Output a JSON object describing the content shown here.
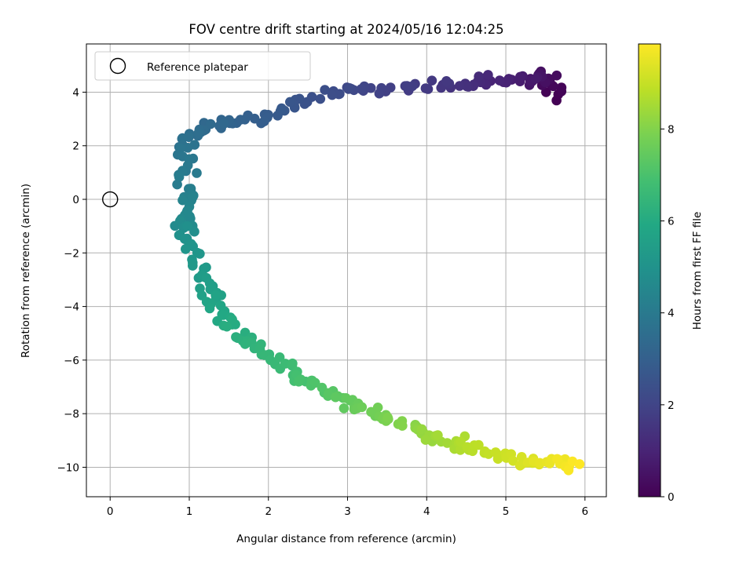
{
  "chart_data": {
    "type": "scatter",
    "title": "FOV centre drift starting at 2024/05/16 12:04:25",
    "xlabel": "Angular distance from reference (arcmin)",
    "ylabel": "Rotation from reference (arcmin)",
    "xlim": [
      -0.3,
      6.27
    ],
    "ylim": [
      -11.1,
      5.8
    ],
    "xticks": [
      0,
      1,
      2,
      3,
      4,
      5,
      6
    ],
    "yticks": [
      -10,
      -8,
      -6,
      -4,
      -2,
      0,
      2,
      4
    ],
    "xtick_labels": [
      "0",
      "1",
      "2",
      "3",
      "4",
      "5",
      "6"
    ],
    "ytick_labels": [
      "−10",
      "−8",
      "−6",
      "−4",
      "−2",
      "0",
      "2",
      "4"
    ],
    "grid": true,
    "legend": {
      "position": "top-left",
      "label": "Reference platepar",
      "marker": "open-circle"
    },
    "reference_point": {
      "x": 0,
      "y": 0
    },
    "colorbar": {
      "label": "Hours from first FF file",
      "colormap": "viridis",
      "range": [
        0,
        9.85
      ],
      "ticks": [
        0,
        2,
        4,
        6,
        8
      ],
      "tick_labels": [
        "0",
        "2",
        "4",
        "6",
        "8"
      ]
    },
    "anchors": [
      {
        "h": 0.0,
        "x": 5.65,
        "y": 3.8
      },
      {
        "h": 0.3,
        "x": 5.55,
        "y": 4.6
      },
      {
        "h": 0.7,
        "x": 5.3,
        "y": 4.45
      },
      {
        "h": 1.0,
        "x": 4.9,
        "y": 4.5
      },
      {
        "h": 1.4,
        "x": 4.4,
        "y": 4.3
      },
      {
        "h": 1.7,
        "x": 3.95,
        "y": 4.3
      },
      {
        "h": 2.0,
        "x": 3.2,
        "y": 4.1
      },
      {
        "h": 2.3,
        "x": 2.8,
        "y": 4.0
      },
      {
        "h": 2.6,
        "x": 2.3,
        "y": 3.6
      },
      {
        "h": 2.9,
        "x": 1.9,
        "y": 3.0
      },
      {
        "h": 3.2,
        "x": 1.45,
        "y": 2.9
      },
      {
        "h": 3.5,
        "x": 1.1,
        "y": 2.5
      },
      {
        "h": 3.8,
        "x": 0.9,
        "y": 1.8
      },
      {
        "h": 4.2,
        "x": 0.95,
        "y": 0.4
      },
      {
        "h": 4.6,
        "x": 0.95,
        "y": -0.8
      },
      {
        "h": 5.0,
        "x": 1.0,
        "y": -1.5
      },
      {
        "h": 5.3,
        "x": 1.15,
        "y": -2.7
      },
      {
        "h": 5.7,
        "x": 1.3,
        "y": -3.8
      },
      {
        "h": 6.0,
        "x": 1.5,
        "y": -4.6
      },
      {
        "h": 6.4,
        "x": 1.85,
        "y": -5.6
      },
      {
        "h": 6.8,
        "x": 2.3,
        "y": -6.5
      },
      {
        "h": 7.2,
        "x": 2.75,
        "y": -7.2
      },
      {
        "h": 7.6,
        "x": 3.2,
        "y": -7.8
      },
      {
        "h": 8.0,
        "x": 3.7,
        "y": -8.4
      },
      {
        "h": 8.4,
        "x": 4.1,
        "y": -8.9
      },
      {
        "h": 8.8,
        "x": 4.6,
        "y": -9.3
      },
      {
        "h": 9.2,
        "x": 5.1,
        "y": -9.65
      },
      {
        "h": 9.6,
        "x": 5.6,
        "y": -9.85
      },
      {
        "h": 9.85,
        "x": 5.9,
        "y": -9.9
      }
    ],
    "num_points": 330,
    "noise": {
      "x": 0.12,
      "y": 0.22
    }
  }
}
